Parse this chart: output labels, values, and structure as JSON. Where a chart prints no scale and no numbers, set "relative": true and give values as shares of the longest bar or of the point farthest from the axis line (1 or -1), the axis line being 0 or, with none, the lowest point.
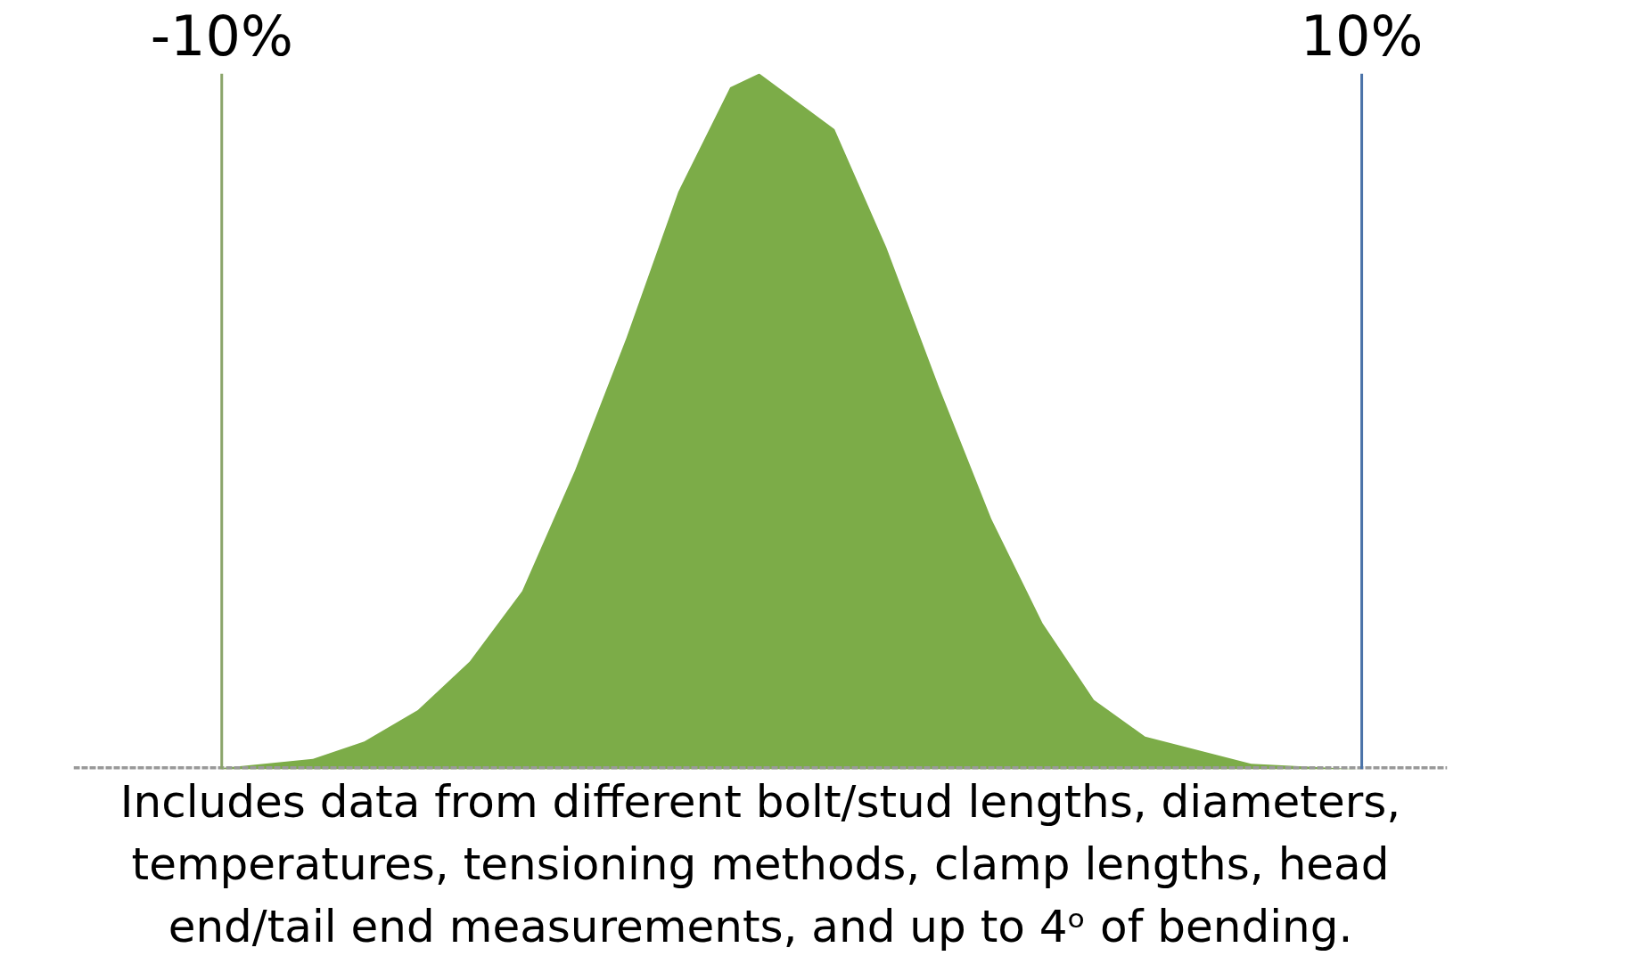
{
  "chart_data": {
    "type": "area",
    "relative": true,
    "color": "#7cac48",
    "x": [
      -10,
      -8.4,
      -7.5,
      -6.56,
      -5.65,
      -4.73,
      -3.8,
      -2.9,
      -1.99,
      -1.08,
      -0.57,
      0.75,
      1.66,
      2.58,
      3.5,
      4.4,
      5.3,
      6.2,
      8.06,
      10
    ],
    "values": [
      0.002,
      0.015,
      0.04,
      0.085,
      0.155,
      0.256,
      0.43,
      0.62,
      0.83,
      0.98,
      1,
      0.92,
      0.75,
      0.55,
      0.36,
      0.21,
      0.1,
      0.047,
      0.008,
      0
    ],
    "xlim": [
      -12.6,
      11.5
    ],
    "xticks": [
      {
        "value": -10,
        "label": "-10%"
      },
      {
        "value": 10,
        "label": "10%"
      }
    ],
    "tick_labels": "x",
    "grid": false,
    "ref_lines": [
      {
        "axis": "x",
        "value": -10,
        "color": "#8aa46a"
      },
      {
        "axis": "x",
        "value": 10,
        "color": "#4a72a8"
      }
    ],
    "annotations": [
      "Includes data from different bolt/stud lengths, diameters, temperatures, tensioning methods, clamp lengths, head end/tail end measurements, and up to 4ᵒ of bending."
    ]
  }
}
